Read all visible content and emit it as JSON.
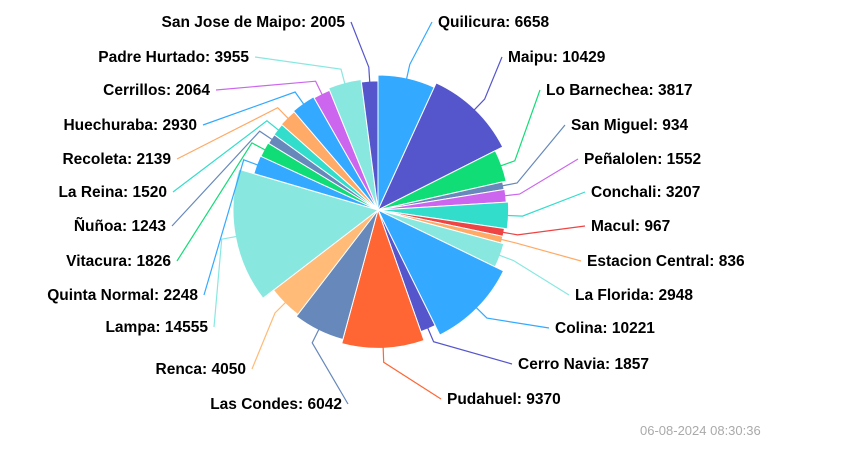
{
  "timestamp": "06-08-2024 08:30:36",
  "chart_data": {
    "type": "pie",
    "title": "",
    "slices": [
      {
        "name": "Quilicura",
        "value": 6658,
        "color": "#33aaff"
      },
      {
        "name": "Maipu",
        "value": 10429,
        "color": "#5555cc"
      },
      {
        "name": "Lo Barnechea",
        "value": 3817,
        "color": "#11dd77"
      },
      {
        "name": "San Miguel",
        "value": 934,
        "color": "#6688bb"
      },
      {
        "name": "Peñalolen",
        "value": 1552,
        "color": "#cc66ee"
      },
      {
        "name": "Conchali",
        "value": 3207,
        "color": "#33ddcc"
      },
      {
        "name": "Macul",
        "value": 967,
        "color": "#ee4444"
      },
      {
        "name": "Estacion Central",
        "value": 836,
        "color": "#ffaa66"
      },
      {
        "name": "La Florida",
        "value": 2948,
        "color": "#88e8e0"
      },
      {
        "name": "Colina",
        "value": 10221,
        "color": "#33aaff"
      },
      {
        "name": "Cerro Navia",
        "value": 1857,
        "color": "#5555cc"
      },
      {
        "name": "Pudahuel",
        "value": 9370,
        "color": "#ff6633"
      },
      {
        "name": "Las Condes",
        "value": 6042,
        "color": "#6688bb"
      },
      {
        "name": "Renca",
        "value": 4050,
        "color": "#ffbb77"
      },
      {
        "name": "Lampa",
        "value": 14555,
        "color": "#88e8e0"
      },
      {
        "name": "Quinta Normal",
        "value": 2248,
        "color": "#33aaff"
      },
      {
        "name": "Vitacura",
        "value": 1826,
        "color": "#11dd77"
      },
      {
        "name": "Ñuñoa",
        "value": 1243,
        "color": "#6688bb"
      },
      {
        "name": "La Reina",
        "value": 1520,
        "color": "#33ddcc"
      },
      {
        "name": "Recoleta",
        "value": 2139,
        "color": "#ffaa66"
      },
      {
        "name": "Huechuraba",
        "value": 2930,
        "color": "#33aaff"
      },
      {
        "name": "Cerrillos",
        "value": 2064,
        "color": "#cc66ee"
      },
      {
        "name": "Padre Hurtado",
        "value": 3955,
        "color": "#88e8e0"
      },
      {
        "name": "San Jose de Maipo",
        "value": 2005,
        "color": "#5555cc"
      }
    ]
  }
}
